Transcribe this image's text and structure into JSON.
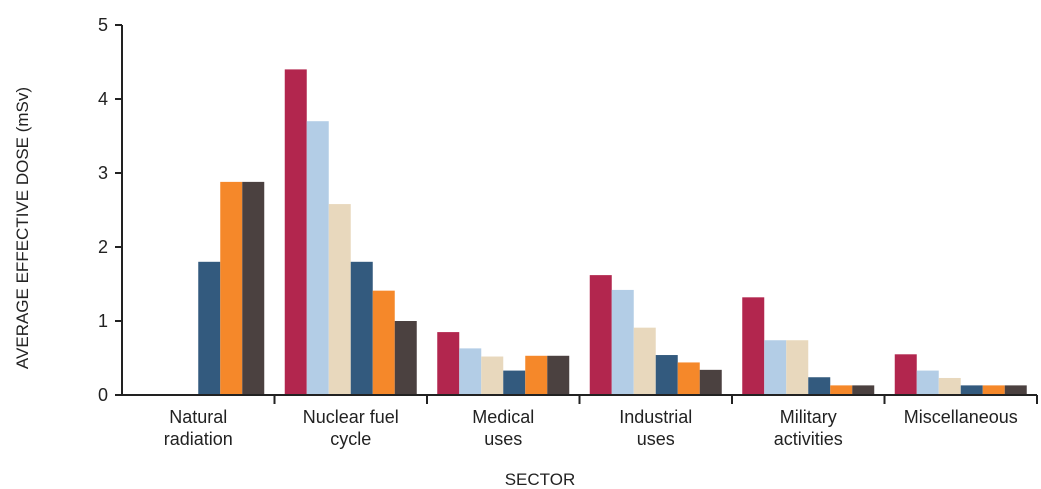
{
  "chart_data": {
    "type": "bar",
    "title": "",
    "xlabel": "SECTOR",
    "ylabel": "AVERAGE EFFECTIVE DOSE (mSv)",
    "ylim": [
      0,
      5
    ],
    "yticks": [
      "0",
      "1",
      "2",
      "3",
      "4",
      "5"
    ],
    "grid": false,
    "legend": "none",
    "categories": [
      [
        "Natural",
        "radiation"
      ],
      [
        "Nuclear fuel",
        "cycle"
      ],
      [
        "Medical",
        "uses"
      ],
      [
        "Industrial",
        "uses"
      ],
      [
        "Military",
        "activities"
      ],
      [
        "Miscellaneous"
      ]
    ],
    "series": [
      {
        "color": "#b2264e",
        "values": [
          0,
          4.4,
          0.85,
          1.62,
          1.32,
          0.55
        ]
      },
      {
        "color": "#b3cde6",
        "values": [
          0,
          3.7,
          0.63,
          1.42,
          0.74,
          0.33
        ]
      },
      {
        "color": "#e8d8bd",
        "values": [
          0,
          2.58,
          0.52,
          0.91,
          0.74,
          0.23
        ]
      },
      {
        "color": "#335a7e",
        "values": [
          1.8,
          1.8,
          0.33,
          0.54,
          0.24,
          0.13
        ]
      },
      {
        "color": "#f5882a",
        "values": [
          2.88,
          1.41,
          0.53,
          0.44,
          0.13,
          0.13
        ]
      },
      {
        "color": "#4b4140",
        "values": [
          2.88,
          1.0,
          0.53,
          0.34,
          0.13,
          0.13
        ]
      }
    ]
  }
}
